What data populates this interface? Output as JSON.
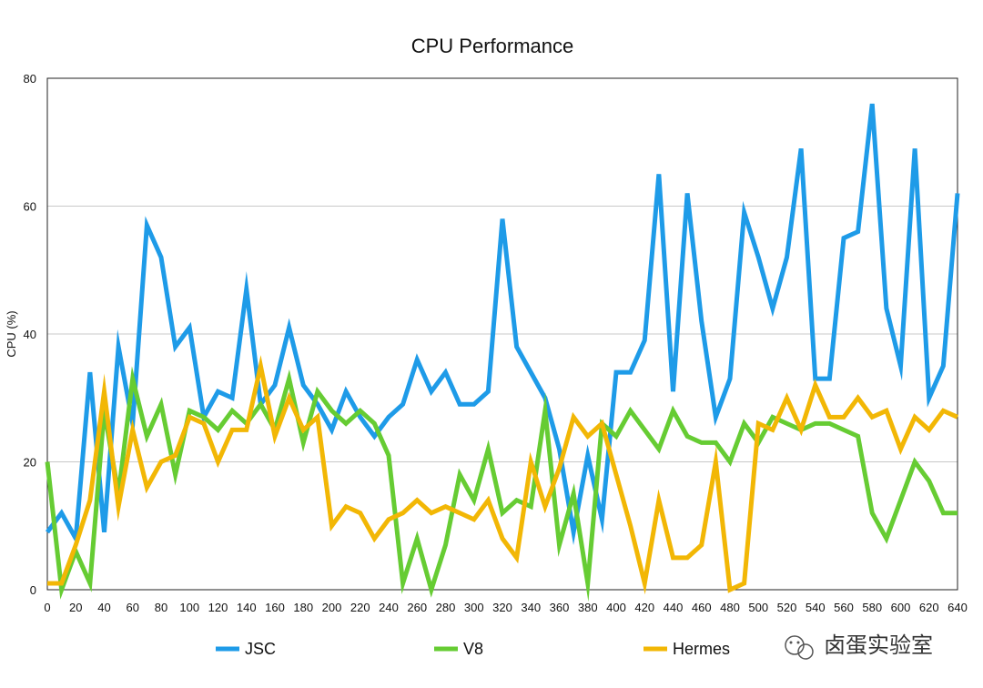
{
  "chart_data": {
    "type": "line",
    "title": "CPU Performance",
    "xlabel": "",
    "ylabel": "CPU (%)",
    "xlim": [
      0,
      640
    ],
    "ylim": [
      0,
      80
    ],
    "x_ticks": [
      0,
      20,
      40,
      60,
      80,
      100,
      120,
      140,
      160,
      180,
      200,
      220,
      240,
      260,
      280,
      300,
      320,
      340,
      360,
      380,
      400,
      420,
      440,
      460,
      480,
      500,
      520,
      540,
      560,
      580,
      600,
      620,
      640
    ],
    "y_ticks": [
      0,
      20,
      40,
      60,
      80
    ],
    "grid": "horizontal",
    "legend_position": "bottom",
    "x": [
      0,
      10,
      20,
      30,
      40,
      50,
      60,
      70,
      80,
      90,
      100,
      110,
      120,
      130,
      140,
      150,
      160,
      170,
      180,
      190,
      200,
      210,
      220,
      230,
      240,
      250,
      260,
      270,
      280,
      290,
      300,
      310,
      320,
      330,
      340,
      350,
      360,
      370,
      380,
      390,
      400,
      410,
      420,
      430,
      440,
      450,
      460,
      470,
      480,
      490,
      500,
      510,
      520,
      530,
      540,
      550,
      560,
      570,
      580,
      590,
      600,
      610,
      620,
      630,
      640
    ],
    "series": [
      {
        "name": "JSC",
        "color": "#1E9BE8",
        "values": [
          9,
          12,
          8,
          34,
          9,
          38,
          26,
          57,
          52,
          38,
          41,
          27,
          31,
          30,
          47,
          29,
          32,
          41,
          32,
          29,
          25,
          31,
          27,
          24,
          27,
          29,
          36,
          31,
          34,
          29,
          29,
          31,
          58,
          38,
          34,
          30,
          22,
          9,
          21,
          11,
          34,
          34,
          39,
          65,
          31,
          62,
          42,
          27,
          33,
          59,
          52,
          44,
          52,
          69,
          33,
          33,
          55,
          56,
          76,
          44,
          35,
          69,
          30,
          35,
          62
        ]
      },
      {
        "name": "V8",
        "color": "#66CC33",
        "values": [
          20,
          0,
          6,
          1,
          28,
          15,
          33,
          24,
          29,
          18,
          28,
          27,
          25,
          28,
          26,
          29,
          25,
          33,
          23,
          31,
          28,
          26,
          28,
          26,
          21,
          1,
          8,
          0,
          7,
          18,
          14,
          22,
          12,
          14,
          13,
          28,
          7,
          15,
          1,
          26,
          24,
          28,
          25,
          22,
          28,
          24,
          23,
          23,
          20,
          26,
          23,
          27,
          26,
          25,
          26,
          26,
          25,
          24,
          12,
          8,
          14,
          20,
          17,
          12,
          12
        ]
      },
      {
        "name": "Hermes",
        "color": "#F2B705",
        "values": [
          1,
          1,
          7,
          14,
          31,
          13,
          25,
          16,
          20,
          21,
          27,
          26,
          20,
          25,
          25,
          35,
          24,
          30,
          25,
          27,
          10,
          13,
          12,
          8,
          11,
          12,
          14,
          12,
          13,
          12,
          11,
          14,
          8,
          5,
          20,
          13,
          19,
          27,
          24,
          26,
          18,
          10,
          1,
          14,
          5,
          5,
          7,
          20,
          0,
          1,
          26,
          25,
          30,
          25,
          32,
          27,
          27,
          30,
          27,
          28,
          22,
          27,
          25,
          28,
          27
        ]
      }
    ]
  },
  "watermark": {
    "text": "卤蛋实验室",
    "icon": "wechat-icon"
  }
}
